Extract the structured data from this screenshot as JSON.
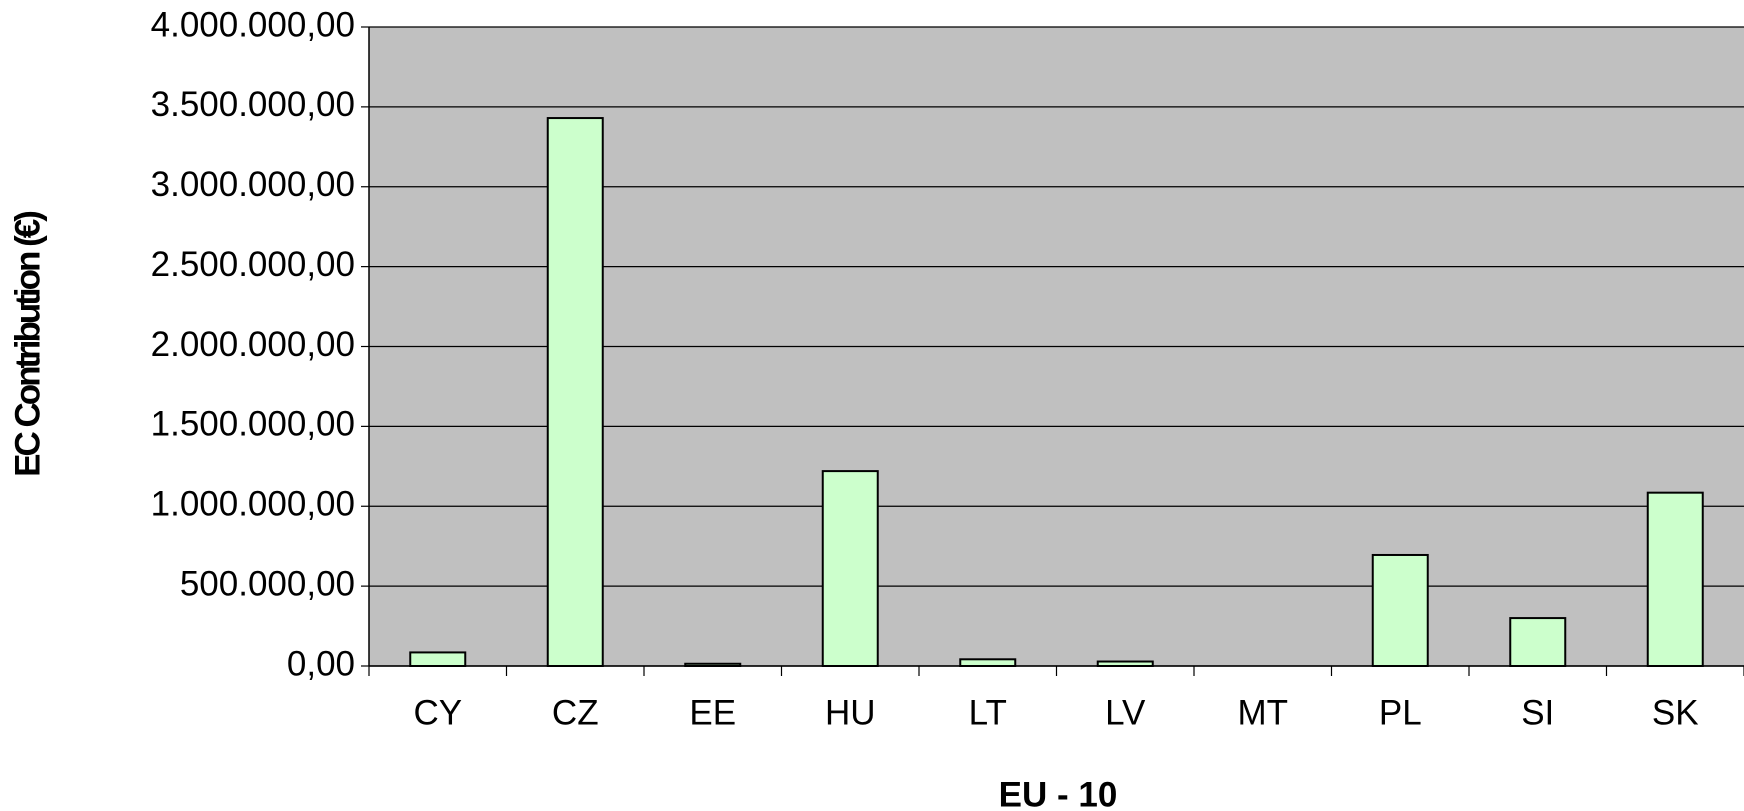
{
  "chart_data": {
    "type": "bar",
    "x_label": "EU - 10",
    "y_label": "EC Contribution (€)",
    "categories": [
      "CY",
      "CZ",
      "EE",
      "HU",
      "LT",
      "LV",
      "MT",
      "PL",
      "SI",
      "SK"
    ],
    "values": [
      85000,
      3430000,
      14000,
      1220000,
      42000,
      28000,
      0,
      695000,
      300000,
      1085000
    ],
    "color": "#ccffcc",
    "ylim": [
      0,
      4000000
    ],
    "yticks": [
      {
        "value": 0,
        "label": "0,00"
      },
      {
        "value": 500000,
        "label": "500.000,00"
      },
      {
        "value": 1000000,
        "label": "1.000.000,00"
      },
      {
        "value": 1500000,
        "label": "1.500.000,00"
      },
      {
        "value": 2000000,
        "label": "2.000.000,00"
      },
      {
        "value": 2500000,
        "label": "2.500.000,00"
      },
      {
        "value": 3000000,
        "label": "3.000.000,00"
      },
      {
        "value": 3500000,
        "label": "3.500.000,00"
      },
      {
        "value": 4000000,
        "label": "4.000.000,00"
      }
    ],
    "grid": true
  }
}
